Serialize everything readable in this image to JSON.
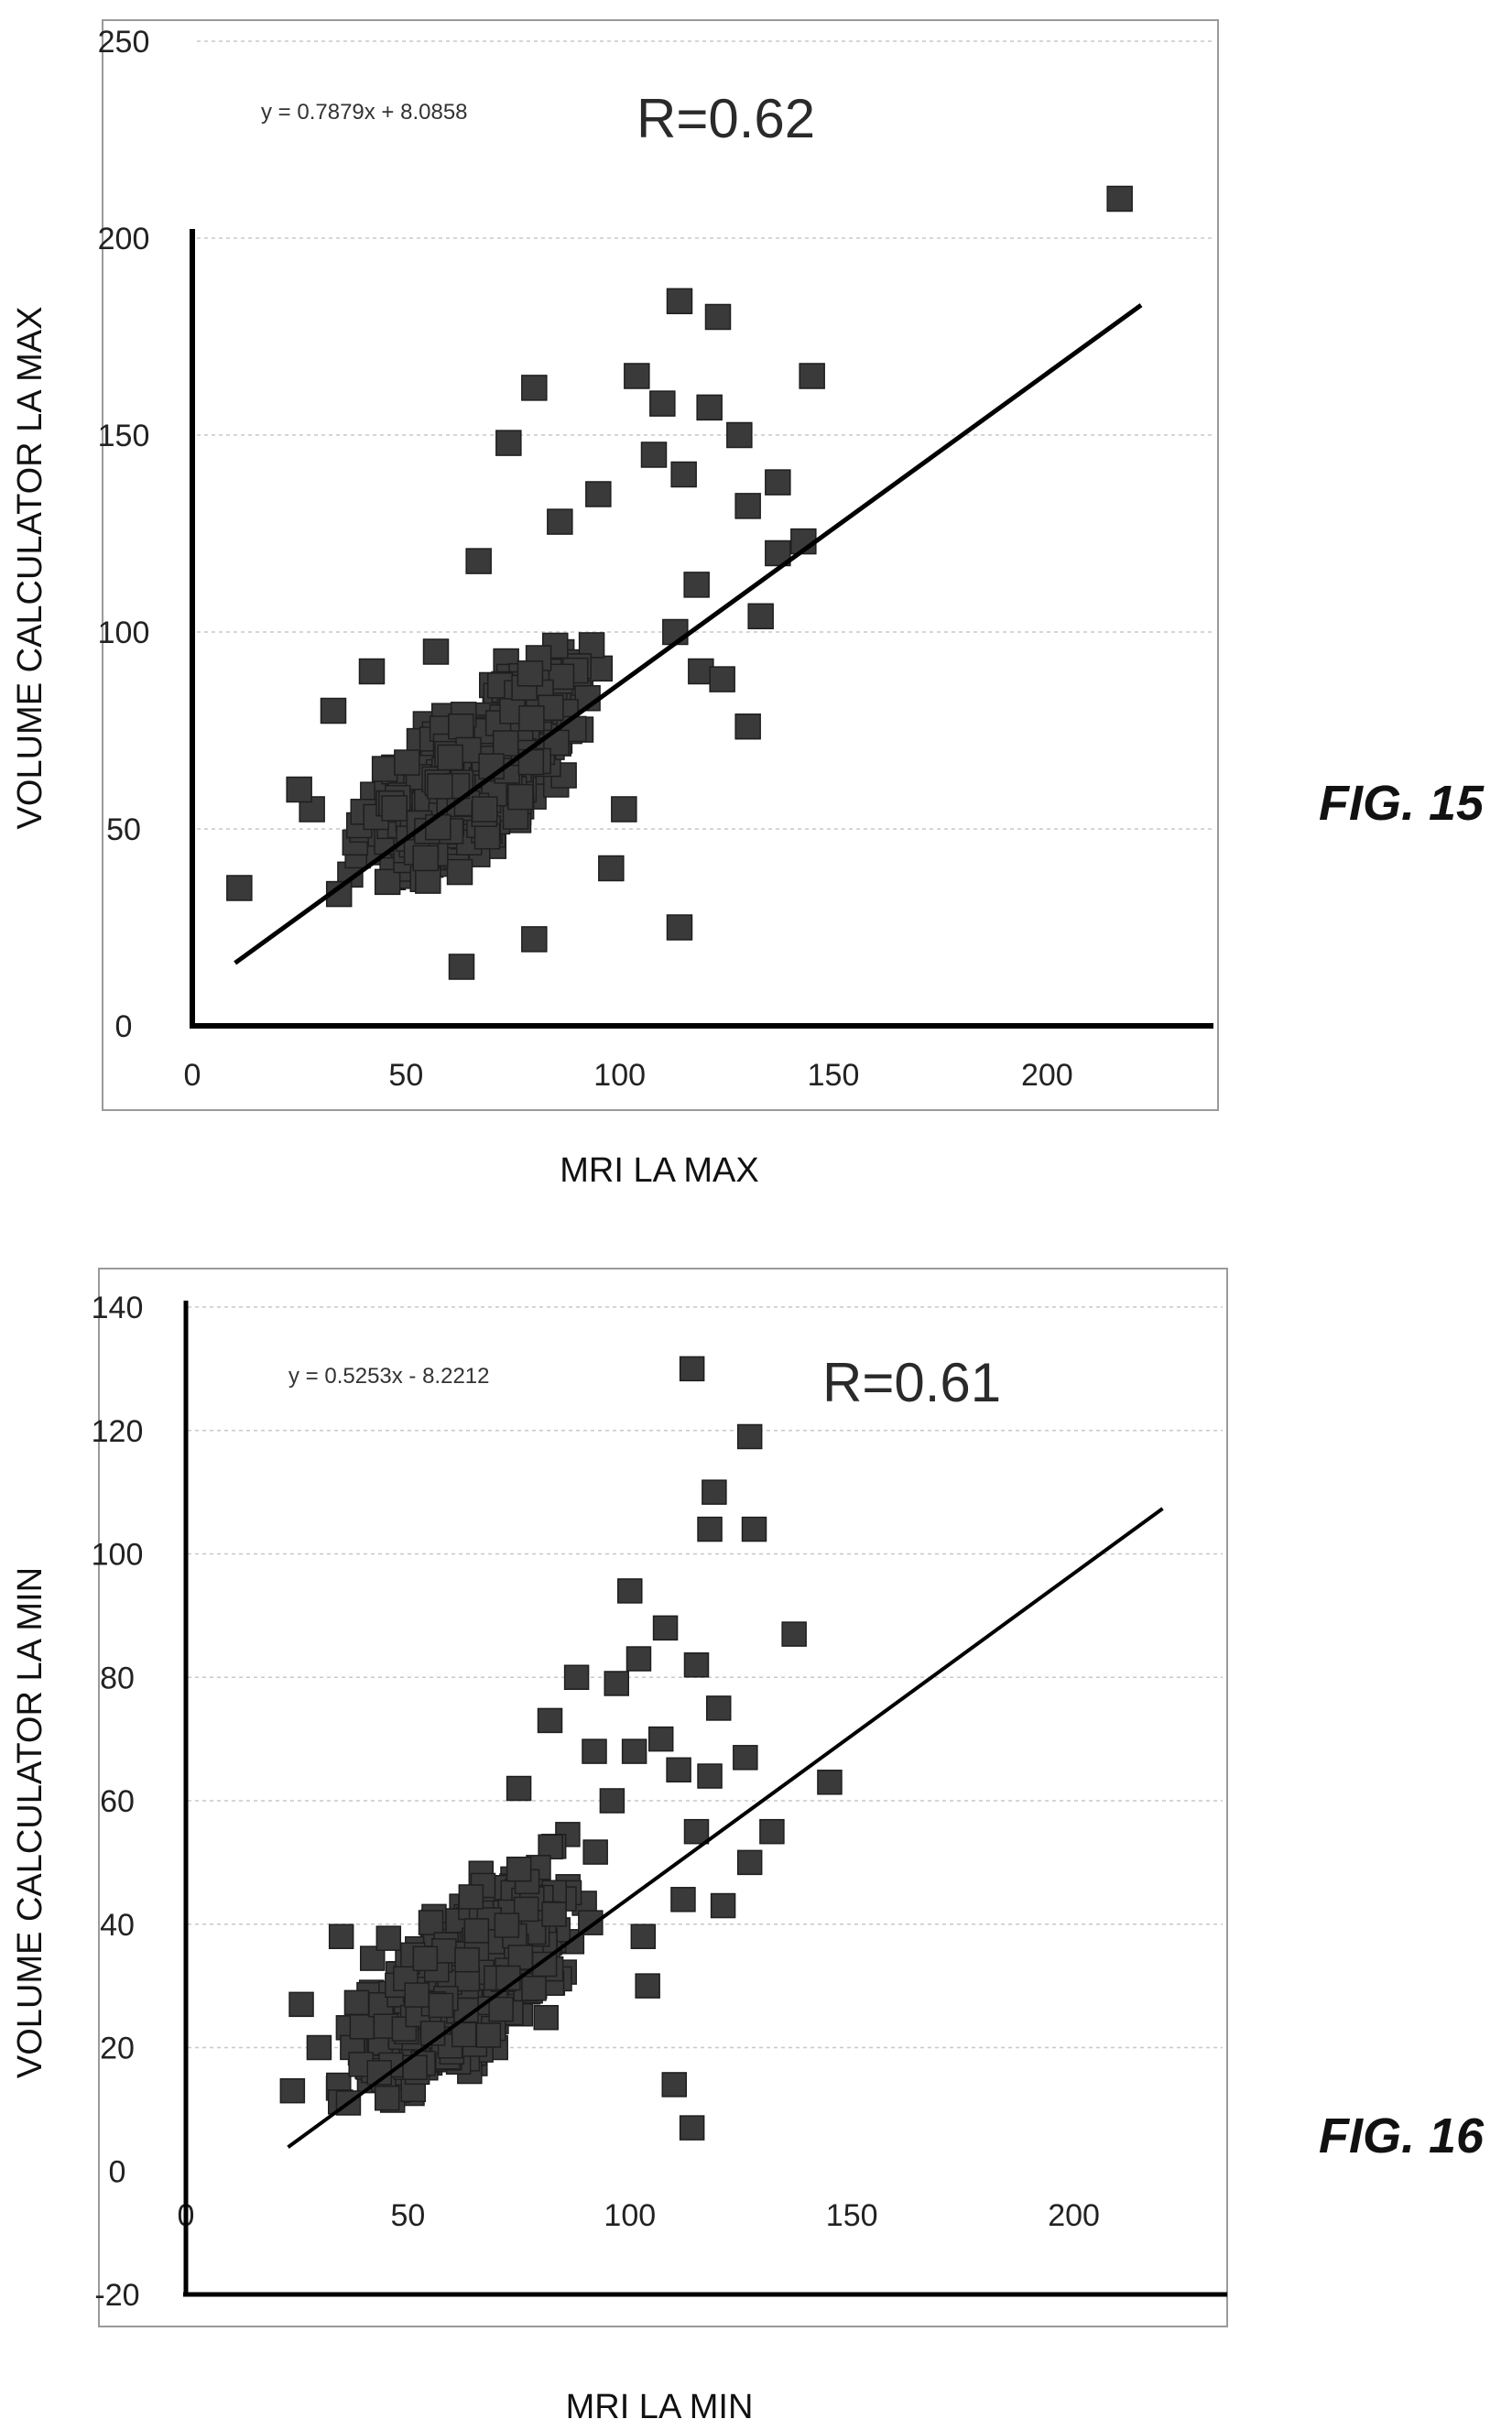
{
  "chart_data": [
    {
      "type": "scatter",
      "figure_label": "FIG. 15",
      "xlabel": "MRI LA MAX",
      "ylabel": "VOLUME CALCULATOR LA MAX",
      "xlim": [
        0,
        240
      ],
      "ylim": [
        0,
        250
      ],
      "xticks": [
        "0",
        "50",
        "100",
        "150",
        "200"
      ],
      "yticks": [
        "0",
        "50",
        "100",
        "150",
        "200",
        "250"
      ],
      "equation": "y = 0.7879x + 8.0858",
      "r_label": "R=0.62",
      "trendline": {
        "slope": 0.7879,
        "intercept": 8.0858,
        "x_range": [
          10,
          222
        ]
      },
      "grid": "horizontal",
      "marker": "square",
      "cluster_note": "dense cluster",
      "cluster": {
        "x_range": [
          25,
          105
        ],
        "y_range": [
          12,
          120
        ]
      },
      "points": [
        [
          11,
          35
        ],
        [
          217,
          210
        ],
        [
          114,
          184
        ],
        [
          123,
          180
        ],
        [
          80,
          162
        ],
        [
          104,
          165
        ],
        [
          145,
          165
        ],
        [
          110,
          158
        ],
        [
          121,
          157
        ],
        [
          128,
          150
        ],
        [
          74,
          148
        ],
        [
          115,
          140
        ],
        [
          137,
          138
        ],
        [
          130,
          132
        ],
        [
          137,
          120
        ],
        [
          143,
          123
        ],
        [
          133,
          104
        ],
        [
          119,
          90
        ],
        [
          124,
          88
        ],
        [
          130,
          76
        ],
        [
          114,
          25
        ],
        [
          98,
          40
        ],
        [
          101,
          55
        ],
        [
          80,
          22
        ],
        [
          63,
          15
        ],
        [
          28,
          55
        ],
        [
          25,
          60
        ],
        [
          33,
          80
        ],
        [
          108,
          145
        ],
        [
          95,
          135
        ],
        [
          86,
          128
        ],
        [
          67,
          118
        ],
        [
          57,
          95
        ],
        [
          118,
          112
        ],
        [
          113,
          100
        ],
        [
          42,
          90
        ]
      ]
    },
    {
      "type": "scatter",
      "figure_label": "FIG. 16",
      "xlabel": "MRI LA MIN",
      "ylabel": "VOLUME CALCULATOR LA MIN",
      "xlim": [
        0,
        230
      ],
      "ylim": [
        -20,
        140
      ],
      "xticks": [
        "0",
        "50",
        "100",
        "150",
        "200"
      ],
      "yticks": [
        "-20",
        "0",
        "20",
        "40",
        "60",
        "80",
        "100",
        "120",
        "140"
      ],
      "equation": "y = 0.5253x - 8.2212",
      "r_label": "R=0.61",
      "trendline": {
        "slope": 0.5253,
        "intercept": -8.2212,
        "x_range": [
          23,
          220
        ]
      },
      "grid": "horizontal",
      "marker": "square",
      "cluster_note": "dense cluster",
      "cluster": {
        "x_range": [
          25,
          100
        ],
        "y_range": [
          -2,
          72
        ]
      },
      "points": [
        [
          114,
          130
        ],
        [
          127,
          119
        ],
        [
          119,
          110
        ],
        [
          118,
          104
        ],
        [
          128,
          104
        ],
        [
          100,
          94
        ],
        [
          108,
          88
        ],
        [
          137,
          87
        ],
        [
          102,
          83
        ],
        [
          115,
          82
        ],
        [
          88,
          80
        ],
        [
          97,
          79
        ],
        [
          120,
          75
        ],
        [
          107,
          70
        ],
        [
          111,
          65
        ],
        [
          118,
          64
        ],
        [
          126,
          67
        ],
        [
          101,
          68
        ],
        [
          92,
          68
        ],
        [
          145,
          63
        ],
        [
          132,
          55
        ],
        [
          127,
          50
        ],
        [
          121,
          43
        ],
        [
          112,
          44
        ],
        [
          115,
          55
        ],
        [
          103,
          38
        ],
        [
          110,
          14
        ],
        [
          114,
          7
        ],
        [
          24,
          13
        ],
        [
          26,
          27
        ],
        [
          30,
          20
        ],
        [
          104,
          30
        ],
        [
          96,
          60
        ],
        [
          82,
          73
        ],
        [
          75,
          62
        ],
        [
          35,
          38
        ]
      ]
    }
  ]
}
